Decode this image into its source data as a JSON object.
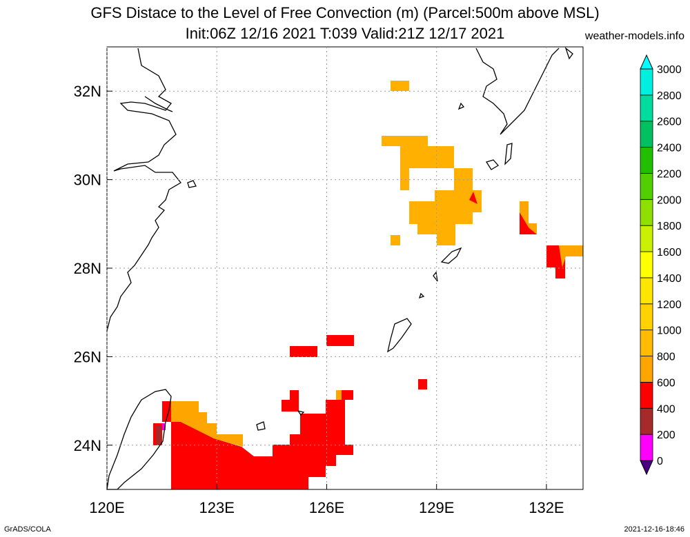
{
  "header": {
    "title": "GFS Distace to the Level of Free Convection (m) (Parcel:500m above MSL)",
    "subtitle": "Init:06Z 12/16 2021 T:039 Valid:21Z 12/17 2021",
    "site": "weather-models.info"
  },
  "footer": {
    "left": "GrADS/COLA",
    "right": "2021-12-16-18:46"
  },
  "map": {
    "lon_range": [
      120,
      133
    ],
    "lat_range": [
      23,
      33
    ],
    "x_ticks": [
      {
        "value": 120,
        "label": "120E"
      },
      {
        "value": 123,
        "label": "123E"
      },
      {
        "value": 126,
        "label": "126E"
      },
      {
        "value": 129,
        "label": "129E"
      },
      {
        "value": 132,
        "label": "132E"
      }
    ],
    "y_ticks": [
      {
        "value": 32,
        "label": "32N"
      },
      {
        "value": 30,
        "label": "30N"
      },
      {
        "value": 28,
        "label": "28N"
      },
      {
        "value": 26,
        "label": "26N"
      },
      {
        "value": 24,
        "label": "24N"
      }
    ],
    "grid": true
  },
  "colorbar": {
    "levels": [
      "0",
      "200",
      "400",
      "600",
      "800",
      "1000",
      "1200",
      "1400",
      "1600",
      "1800",
      "2000",
      "2200",
      "2400",
      "2600",
      "2800",
      "3000"
    ],
    "colors": [
      "#4b0082",
      "#ff00ff",
      "#a52a2a",
      "#ff0000",
      "#ffa500",
      "#ffbb00",
      "#ffd200",
      "#ffe600",
      "#ffff00",
      "#c8f000",
      "#8fe000",
      "#50d000",
      "#20c000",
      "#00c060",
      "#00dca0",
      "#00f0e0",
      "#00ffff"
    ]
  }
}
